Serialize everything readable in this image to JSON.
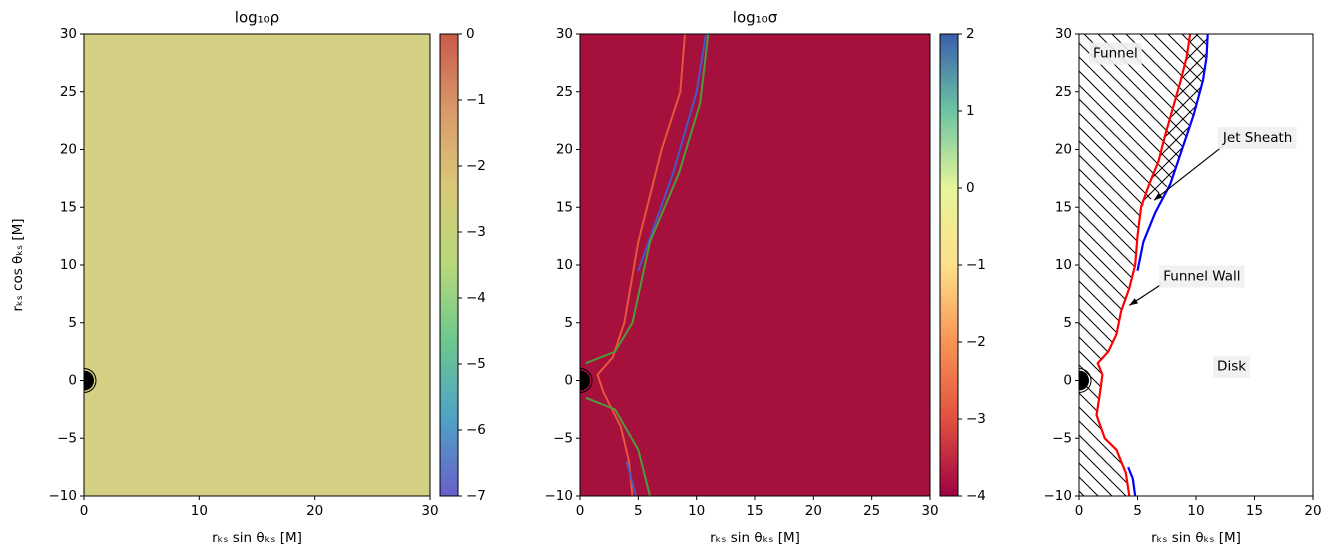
{
  "chart_data": [
    {
      "type": "image",
      "title": "log₁₀ρ",
      "xlabel": "rₖₛ sin θₖₛ [M]",
      "ylabel": "rₖₛ cos θₖₛ [M]",
      "xlim": [
        0,
        30
      ],
      "ylim": [
        -10,
        30
      ],
      "xticks": [
        0,
        10,
        20,
        30
      ],
      "yticks": [
        {
          "value": -10,
          "label": "−10"
        },
        {
          "value": -5,
          "label": "−5"
        },
        0,
        5,
        10,
        15,
        20,
        25,
        30
      ],
      "colorbar": {
        "lim": [
          -7,
          0
        ],
        "colors": [
          "#6a5fc9",
          "#4fa2c6",
          "#6cc78f",
          "#b8d97a",
          "#d9c978",
          "#d99a6a",
          "#c95a4a"
        ],
        "ticks": [
          0,
          {
            "value": -1,
            "label": "−1"
          },
          {
            "value": -2,
            "label": "−2"
          },
          {
            "value": -3,
            "label": "−3"
          },
          {
            "value": -4,
            "label": "−4"
          },
          {
            "value": -5,
            "label": "−5"
          },
          {
            "value": -6,
            "label": "−6"
          },
          {
            "value": -7,
            "label": "−7"
          }
        ]
      }
    },
    {
      "type": "image",
      "title": "log₁₀σ",
      "xlabel": "rₖₛ sin θₖₛ [M]",
      "xlim": [
        0,
        30
      ],
      "ylim": [
        -10,
        30
      ],
      "xticks": [
        0,
        5,
        10,
        15,
        20,
        25,
        30
      ],
      "yticks": [
        {
          "value": -10,
          "label": "−10"
        },
        {
          "value": -5,
          "label": "−5"
        },
        0,
        5,
        10,
        15,
        20,
        25,
        30
      ],
      "colorbar": {
        "lim": [
          -4,
          2
        ],
        "colors": [
          "#9e0142",
          "#e1513f",
          "#f99455",
          "#fee08b",
          "#e6f598",
          "#6cc4a4",
          "#3b5fab"
        ],
        "ticks": [
          2,
          1,
          0,
          {
            "value": -1,
            "label": "−1"
          },
          {
            "value": -2,
            "label": "−2"
          },
          {
            "value": -3,
            "label": "−3"
          },
          {
            "value": -4,
            "label": "−4"
          }
        ]
      }
    },
    {
      "type": "line",
      "xlabel": "rₖₛ sin θₖₛ [M]",
      "xlim": [
        0,
        20
      ],
      "ylim": [
        -10,
        30
      ],
      "xticks": [
        0,
        5,
        10,
        15,
        20
      ],
      "yticks": [
        {
          "value": -10,
          "label": "−10"
        },
        {
          "value": -5,
          "label": "−5"
        },
        0,
        5,
        10,
        15,
        20,
        25,
        30
      ],
      "annotations": [
        "Funnel",
        "Jet Sheath",
        "Funnel Wall",
        "Disk"
      ],
      "series": [
        {
          "color": "#ff0000",
          "x": [
            4.3,
            4.0,
            3.2,
            2.2,
            1.5,
            1.8,
            2.0,
            1.6,
            2.5,
            3.2,
            3.6,
            4.3,
            4.8,
            5.0,
            5.3,
            6.0,
            6.8,
            7.3,
            8.0,
            8.7,
            9.2,
            9.5
          ],
          "y": [
            -10,
            -8,
            -6,
            -5,
            -3,
            -1,
            0.5,
            1.5,
            2.5,
            4,
            6,
            8,
            10,
            12.5,
            15,
            17,
            19,
            21,
            23.5,
            26,
            28,
            30
          ]
        },
        {
          "color": "#0000ff",
          "x": [
            4.8,
            4.6,
            4.2,
            null,
            5.0,
            5.5,
            6.5,
            7.8,
            8.8,
            9.8,
            10.6,
            10.9,
            11.0
          ],
          "y": [
            -10,
            -8.5,
            -7.5,
            null,
            9.5,
            12,
            14.5,
            17,
            20,
            23,
            26,
            28,
            30
          ]
        }
      ]
    }
  ]
}
